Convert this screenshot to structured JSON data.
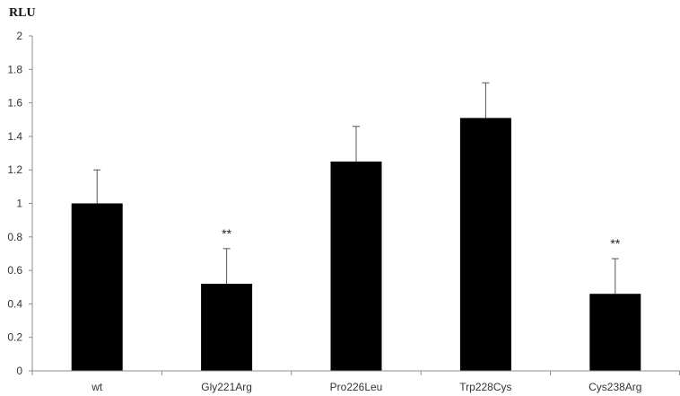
{
  "chart_data": {
    "type": "bar",
    "title": "",
    "xlabel": "",
    "ylabel": "RLU",
    "ylim": [
      0,
      2
    ],
    "yticks": [
      "0",
      "0.2",
      "0.4",
      "0.6",
      "0.8",
      "1",
      "1.2",
      "1.4",
      "1.6",
      "1.8",
      "2"
    ],
    "categories": [
      "wt",
      "Gly221Arg",
      "Pro226Leu",
      "Trp228Cys",
      "Cys238Arg"
    ],
    "values": [
      1.0,
      0.52,
      1.25,
      1.51,
      0.46
    ],
    "error_upper": [
      0.2,
      0.21,
      0.21,
      0.21,
      0.21
    ],
    "annotations": [
      "",
      "**",
      "",
      "",
      "**"
    ],
    "grid": false,
    "legend": "none",
    "bar_color": "#000000",
    "axis_color": "#8c8c8c"
  }
}
